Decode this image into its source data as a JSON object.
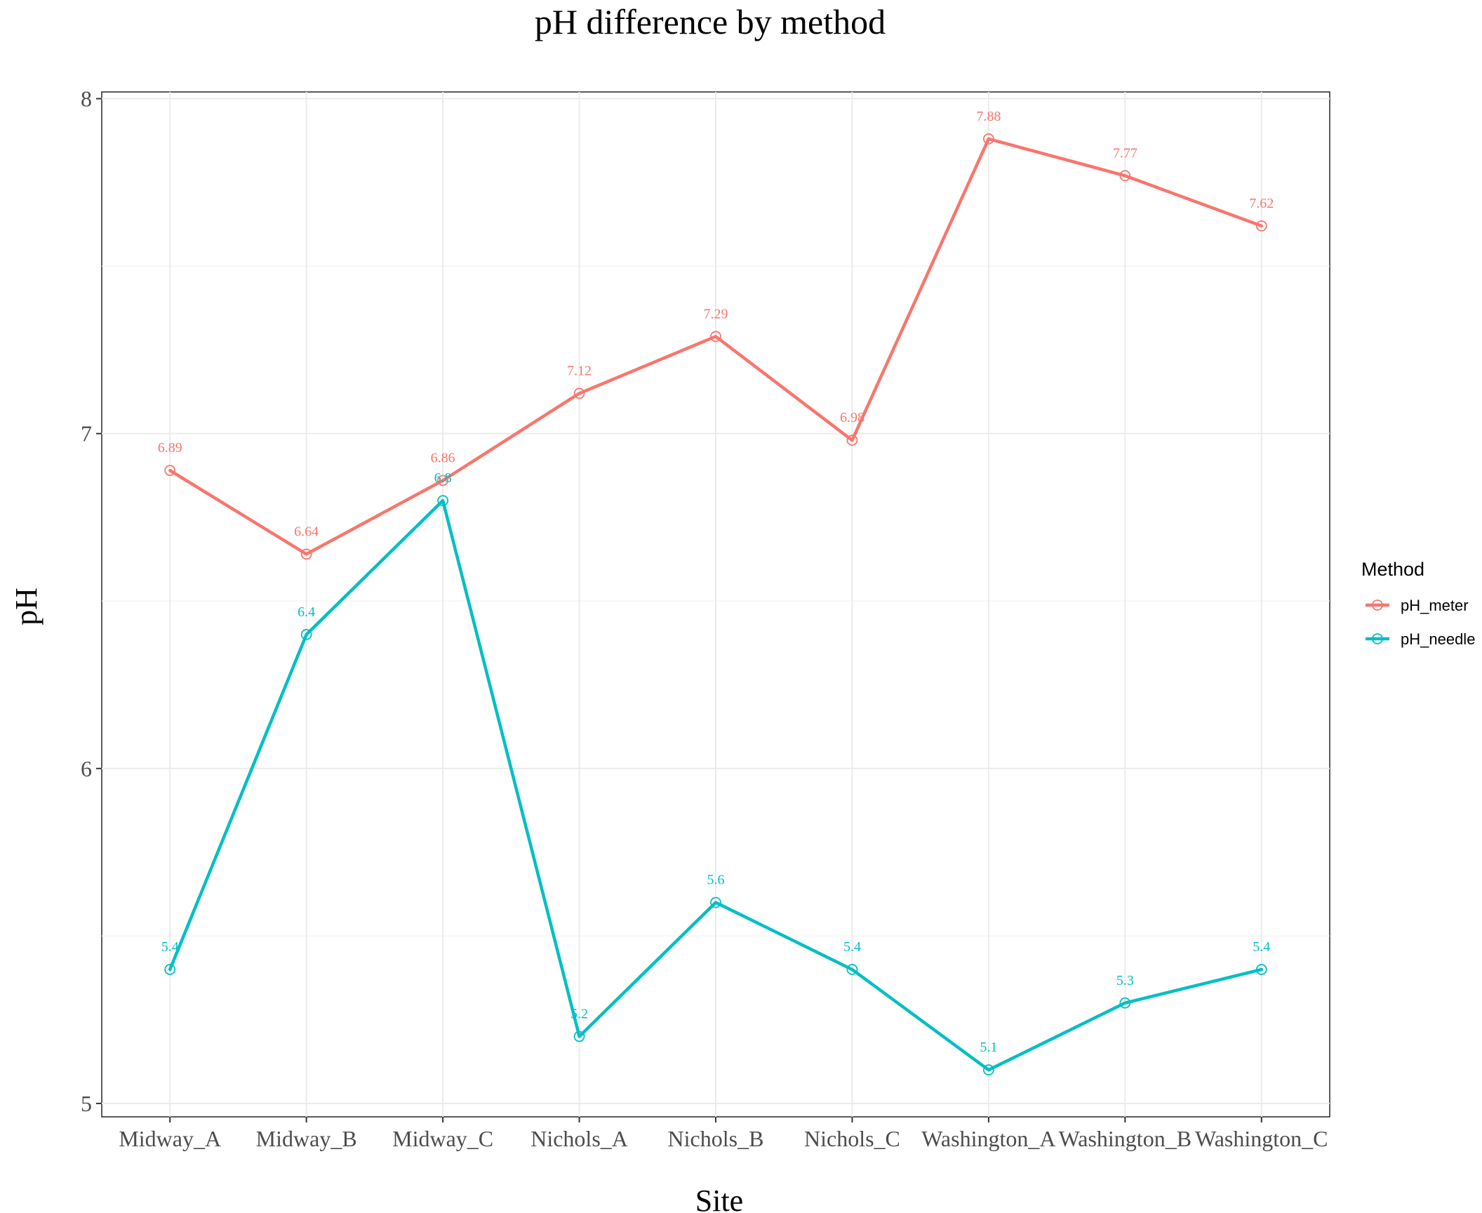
{
  "chart_data": {
    "type": "line",
    "title": "pH difference by method",
    "xlabel": "Site",
    "ylabel": "pH",
    "categories": [
      "Midway_A",
      "Midway_B",
      "Midway_C",
      "Nichols_A",
      "Nichols_B",
      "Nichols_C",
      "Washington_A",
      "Washington_B",
      "Washington_C"
    ],
    "ylim": [
      4.96,
      8.02
    ],
    "yticks": [
      5,
      6,
      7,
      8
    ],
    "grid": true,
    "legend": {
      "title": "Method",
      "position": "right"
    },
    "series": [
      {
        "name": "pH_meter",
        "color": "#F8766D",
        "values": [
          6.89,
          6.64,
          6.86,
          7.12,
          7.29,
          6.98,
          7.88,
          7.77,
          7.62
        ]
      },
      {
        "name": "pH_needle",
        "color": "#00BFC4",
        "values": [
          5.4,
          6.4,
          6.8,
          5.2,
          5.6,
          5.4,
          5.1,
          5.3,
          5.4
        ]
      }
    ]
  }
}
